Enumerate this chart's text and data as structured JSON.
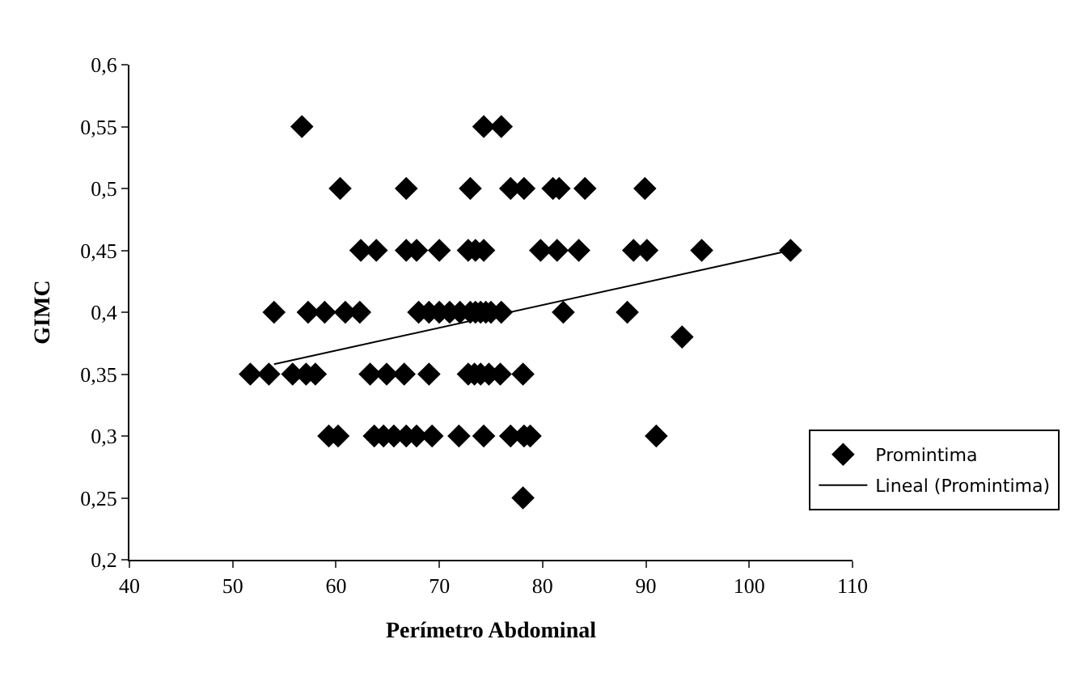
{
  "chart_data": {
    "type": "scatter",
    "xlabel": "Perímetro Abdominal",
    "ylabel": "GIMC",
    "xlim": [
      40,
      110
    ],
    "xticks": [
      40,
      50,
      60,
      70,
      80,
      90,
      100,
      110
    ],
    "ylim": [
      0.2,
      0.6
    ],
    "yticks": [
      {
        "value": 0.2,
        "label": "0,2"
      },
      {
        "value": 0.25,
        "label": "0,25"
      },
      {
        "value": 0.3,
        "label": "0,3"
      },
      {
        "value": 0.35,
        "label": "0,35"
      },
      {
        "value": 0.4,
        "label": "0,4"
      },
      {
        "value": 0.45,
        "label": "0,45"
      },
      {
        "value": 0.5,
        "label": "0,5"
      },
      {
        "value": 0.55,
        "label": "0,55"
      },
      {
        "value": 0.6,
        "label": "0,6"
      }
    ],
    "grid": false,
    "legend": "right",
    "marker": "diamond",
    "series": [
      {
        "name": "Promintima",
        "color": "#000000",
        "x": [
          56.7,
          74.3,
          76,
          60.4,
          66.8,
          73,
          76.9,
          78.2,
          81,
          81.6,
          84.1,
          89.9,
          62.4,
          63.9,
          66.8,
          67.8,
          70,
          72.8,
          73.5,
          74.3,
          79.8,
          81.4,
          83.5,
          88.8,
          90.1,
          95.4,
          104,
          54,
          57.3,
          58.9,
          60.9,
          62.3,
          68,
          69,
          70,
          71,
          72,
          73,
          73.5,
          74,
          74.5,
          75,
          76,
          82,
          88.2,
          93.5,
          51.7,
          53.5,
          55.8,
          57.1,
          58,
          63.3,
          64.9,
          66.6,
          69,
          72.8,
          73.4,
          74,
          74.8,
          75.9,
          78.1,
          59.3,
          60.2,
          63.7,
          64.6,
          65.6,
          66.8,
          67.8,
          69.3,
          71.9,
          74.3,
          76.9,
          78.2,
          78.8,
          91,
          78.1
        ],
        "values": [
          0.55,
          0.55,
          0.55,
          0.5,
          0.5,
          0.5,
          0.5,
          0.5,
          0.5,
          0.5,
          0.5,
          0.5,
          0.45,
          0.45,
          0.45,
          0.45,
          0.45,
          0.45,
          0.45,
          0.45,
          0.45,
          0.45,
          0.45,
          0.45,
          0.45,
          0.45,
          0.45,
          0.4,
          0.4,
          0.4,
          0.4,
          0.4,
          0.4,
          0.4,
          0.4,
          0.4,
          0.4,
          0.4,
          0.4,
          0.4,
          0.4,
          0.4,
          0.4,
          0.4,
          0.4,
          0.38,
          0.35,
          0.35,
          0.35,
          0.35,
          0.35,
          0.35,
          0.35,
          0.35,
          0.35,
          0.35,
          0.35,
          0.35,
          0.35,
          0.35,
          0.35,
          0.3,
          0.3,
          0.3,
          0.3,
          0.3,
          0.3,
          0.3,
          0.3,
          0.3,
          0.3,
          0.3,
          0.3,
          0.3,
          0.3,
          0.25
        ]
      },
      {
        "name": "Lineal (Promintima)",
        "type": "line",
        "color": "#000000",
        "marker": "none",
        "line_style": "solid",
        "x": [
          54,
          104
        ],
        "values": [
          0.358,
          0.45
        ]
      }
    ]
  }
}
